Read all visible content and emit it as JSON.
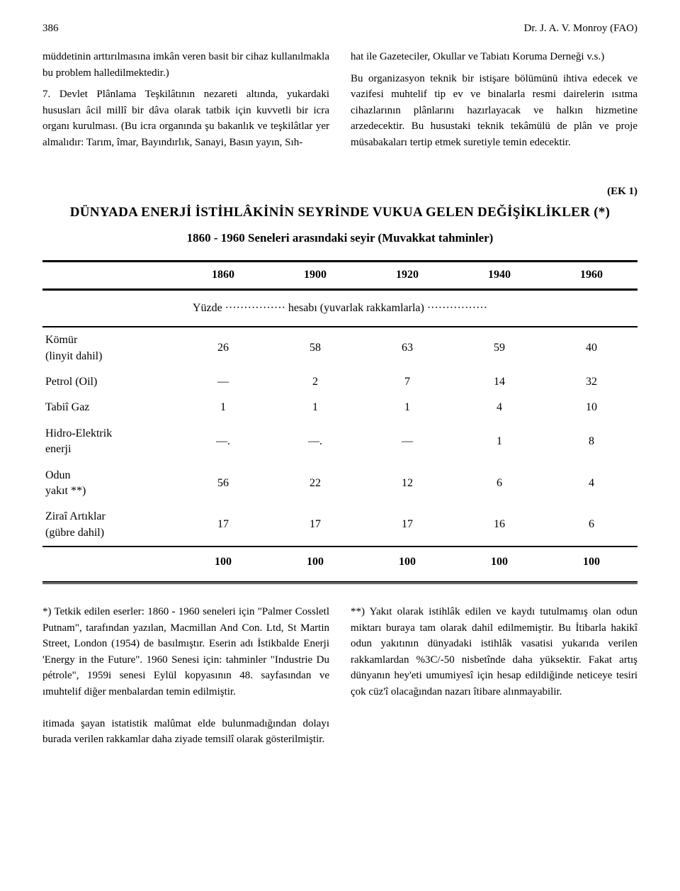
{
  "header": {
    "page_number": "386",
    "author": "Dr. J. A. V. Monroy (FAO)"
  },
  "body": {
    "left_p1": "müddetinin arttırılmasına imkân veren basit bir cihaz kullanılmakla bu problem halledilmektedir.)",
    "left_p2": "7. Devlet Plânlama Teşkilâtının nezareti altında, yukardaki hususları âcil millî bir dâva olarak tatbik için kuvvetli bir icra organı kurulması. (Bu icra organında şu bakanlık ve teşkilâtlar yer almalıdır: Tarım, îmar, Bayındırlık, Sanayi, Basın yayın, Sıh-",
    "right_p1": "hat ile Gazeteciler, Okullar ve Tabiatı Koruma Derneği v.s.)",
    "right_p2": "Bu organizasyon teknik bir istişare bölümünü ihtiva edecek ve vazifesi muhtelif tip ev ve binalarla resmi dairelerin ısıtma cihazlarının plânlarını hazırlayacak ve halkın hizmetine arzedecektir. Bu husustaki teknik tekâmülü de plân ve proje müsabakaları tertip etmek suretiyle temin edecektir."
  },
  "table": {
    "ek_label": "(EK 1)",
    "title": "DÜNYADA ENERJİ İSTİHLÂKİNİN SEYRİNDE VUKUA GELEN DEĞİŞİKLİKLER (*)",
    "subtitle": "1860 - 1960 Seneleri arasındaki seyir (Muvakkat tahminler)",
    "yuzde_text": "Yüzde ················ hesabı (yuvarlak rakkamlarla) ················",
    "columns": [
      "",
      "1860",
      "1900",
      "1920",
      "1940",
      "1960"
    ],
    "rows": [
      {
        "label": "Kömür\n(linyit dahil)",
        "values": [
          "26",
          "58",
          "63",
          "59",
          "40"
        ]
      },
      {
        "label": "Petrol (Oil)",
        "values": [
          "—",
          "2",
          "7",
          "14",
          "32"
        ]
      },
      {
        "label": "Tabiî Gaz",
        "values": [
          "1",
          "1",
          "1",
          "4",
          "10"
        ]
      },
      {
        "label": "Hidro-Elektrik\nenerji",
        "values": [
          "—.",
          "—.",
          "—",
          "1",
          "8"
        ]
      },
      {
        "label": "Odun\nyakıt **)",
        "values": [
          "56",
          "22",
          "12",
          "6",
          "4"
        ]
      },
      {
        "label": "Ziraî Artıklar\n(gübre dahil)",
        "values": [
          "17",
          "17",
          "17",
          "16",
          "6"
        ]
      }
    ],
    "total_row": [
      "",
      "100",
      "100",
      "100",
      "100",
      "100"
    ]
  },
  "footnotes": {
    "left": "*) Tetkik edilen eserler: 1860 - 1960 seneleri için \"Palmer Cossletl Putnam\", tarafından yazılan, Macmillan And Con. Ltd, St Martin Street, London (1954) de basılmıştır. Eserin adı İstikbalde Enerji 'Energy in the Future\". 1960 Senesi için: tahminler \"Industrie Du pétrole\", 1959i senesi Eylül kopyasının 48. sayfasından ve ımuhtelif diğer menbalardan temin edilmiştir.\n\nitimada şayan istatistik malûmat elde bulunmadığından dolayı burada verilen rakkamlar daha ziyade temsilî olarak gösterilmiştir.",
    "right": "**) Yakıt olarak istihlâk edilen ve kaydı tutulmamış olan odun miktarı buraya tam olarak dahil edilmemiştir. Bu İtibarla hakikî odun yakıtının dünyadaki istihlâk vasatisi yukarıda verilen rakkamlardan %3C/-50 nisbetînde daha yüksektir. Fakat artış dünyanın hey'eti umumiyesî için hesap edildiğinde neticeye tesiri çok cüz'î olacağından nazarı îtibare alınmayabilir."
  }
}
